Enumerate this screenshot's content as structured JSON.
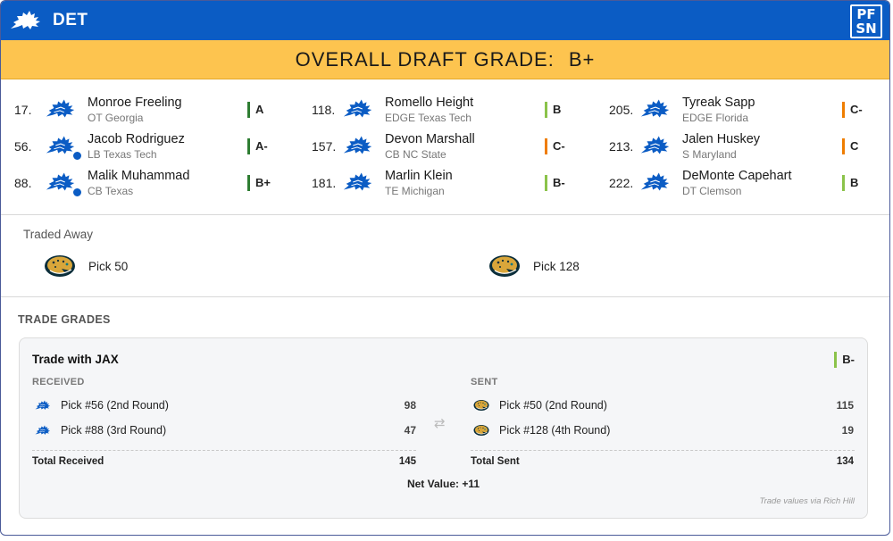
{
  "header": {
    "team_abbr": "DET",
    "brand_logo_icon": "pfsn-logo-icon",
    "brand_logo_line1": "PF",
    "brand_logo_line2": "SN"
  },
  "banner": {
    "label": "OVERALL DRAFT GRADE:",
    "grade": "B+"
  },
  "colors": {
    "header_blue": "#0b5cc4",
    "banner_gold": "#fdc44f",
    "grade_green_dark": "#2e7d32",
    "grade_green_light": "#8bc34a",
    "grade_orange": "#ef7d00"
  },
  "picks": [
    {
      "number": "17.",
      "name": "Monroe Freeling",
      "meta": "OT Georgia",
      "grade": "A",
      "grade_color": "#2e7d32",
      "traded_for": false
    },
    {
      "number": "56.",
      "name": "Jacob Rodriguez",
      "meta": "LB Texas Tech",
      "grade": "A-",
      "grade_color": "#2e7d32",
      "traded_for": true
    },
    {
      "number": "88.",
      "name": "Malik Muhammad",
      "meta": "CB Texas",
      "grade": "B+",
      "grade_color": "#2e7d32",
      "traded_for": true
    },
    {
      "number": "118.",
      "name": "Romello Height",
      "meta": "EDGE Texas Tech",
      "grade": "B",
      "grade_color": "#8bc34a",
      "traded_for": false
    },
    {
      "number": "157.",
      "name": "Devon Marshall",
      "meta": "CB NC State",
      "grade": "C-",
      "grade_color": "#ef7d00",
      "traded_for": false
    },
    {
      "number": "181.",
      "name": "Marlin Klein",
      "meta": "TE Michigan",
      "grade": "B-",
      "grade_color": "#8bc34a",
      "traded_for": false
    },
    {
      "number": "205.",
      "name": "Tyreak Sapp",
      "meta": "EDGE Florida",
      "grade": "C-",
      "grade_color": "#ef7d00",
      "traded_for": false
    },
    {
      "number": "213.",
      "name": "Jalen Huskey",
      "meta": "S Maryland",
      "grade": "C",
      "grade_color": "#ef7d00",
      "traded_for": false
    },
    {
      "number": "222.",
      "name": "DeMonte Capehart",
      "meta": "DT Clemson",
      "grade": "B",
      "grade_color": "#8bc34a",
      "traded_for": false
    }
  ],
  "traded_away": {
    "title": "Traded Away",
    "items": [
      {
        "label": "Pick 50",
        "icon": "jaguars-logo-icon"
      },
      {
        "label": "Pick 128",
        "icon": "jaguars-logo-icon"
      }
    ]
  },
  "trade_grades": {
    "title": "TRADE GRADES",
    "trades": [
      {
        "title": "Trade with JAX",
        "grade": "B-",
        "received_label": "RECEIVED",
        "sent_label": "SENT",
        "received": [
          {
            "label": "Pick #56 (2nd Round)",
            "value": "98",
            "icon": "lions-logo-icon"
          },
          {
            "label": "Pick #88 (3rd Round)",
            "value": "47",
            "icon": "lions-logo-icon"
          }
        ],
        "sent": [
          {
            "label": "Pick #50 (2nd Round)",
            "value": "115",
            "icon": "jaguars-logo-icon"
          },
          {
            "label": "Pick #128 (4th Round)",
            "value": "19",
            "icon": "jaguars-logo-icon"
          }
        ],
        "total_received_label": "Total Received",
        "total_received": "145",
        "total_sent_label": "Total Sent",
        "total_sent": "134",
        "net_value": "Net Value: +11",
        "footnote": "Trade values via Rich Hill"
      }
    ]
  }
}
